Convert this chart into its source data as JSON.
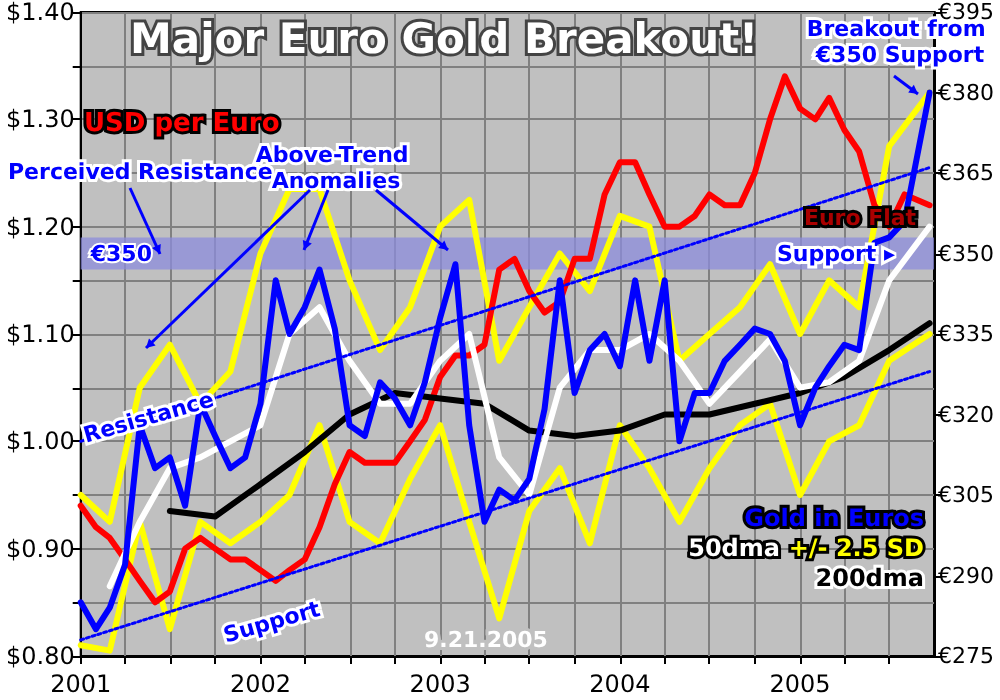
{
  "chart_data": {
    "type": "line",
    "title": "Major Euro Gold Breakout!",
    "annotations": [
      "Perceived Resistance",
      "Above-Trend Anomalies",
      "Euro Flat",
      "Support ▸",
      "Breakout from €350 Support",
      "Resistance",
      "Support",
      "9.21.2005"
    ],
    "xlim": [
      "2001-01-01",
      "2005-09-30"
    ],
    "xticks": [
      "2001",
      {
        "value": "2001-04",
        "label": null
      },
      {
        "value": "2001-07",
        "label": null
      },
      {
        "value": "2001-10",
        "label": null
      },
      "2002",
      {
        "value": "2002-04",
        "label": null
      },
      {
        "value": "2002-07",
        "label": null
      },
      {
        "value": "2002-10",
        "label": null
      },
      "2003",
      {
        "value": "2003-04",
        "label": null
      },
      {
        "value": "2003-07",
        "label": null
      },
      {
        "value": "2003-10",
        "label": null
      },
      "2004",
      {
        "value": "2004-04",
        "label": null
      },
      {
        "value": "2004-07",
        "label": null
      },
      {
        "value": "2004-10",
        "label": null
      },
      "2005",
      {
        "value": "2005-04",
        "label": null
      },
      {
        "value": "2005-07",
        "label": null
      }
    ],
    "ylim": [
      0.8,
      1.4
    ],
    "yticks": [
      {
        "value": 0.8,
        "label": "$0.80"
      },
      {
        "value": 0.85,
        "label": null
      },
      {
        "value": 0.9,
        "label": "$0.90"
      },
      {
        "value": 0.95,
        "label": null
      },
      {
        "value": 1.0,
        "label": "$1.00"
      },
      {
        "value": 1.05,
        "label": null
      },
      {
        "value": 1.1,
        "label": "$1.10"
      },
      {
        "value": 1.15,
        "label": null
      },
      {
        "value": 1.2,
        "label": "$1.20"
      },
      {
        "value": 1.25,
        "label": null
      },
      {
        "value": 1.3,
        "label": "$1.30"
      },
      {
        "value": 1.35,
        "label": null
      },
      {
        "value": 1.4,
        "label": "$1.40"
      }
    ],
    "y2lim": [
      275,
      395
    ],
    "y2ticks": [
      {
        "value": 275,
        "label": "€275"
      },
      {
        "value": 290,
        "label": "€290"
      },
      {
        "value": 305,
        "label": "€305"
      },
      {
        "value": 320,
        "label": "€320"
      },
      {
        "value": 335,
        "label": "€335"
      },
      {
        "value": 350,
        "label": "€350"
      },
      {
        "value": 365,
        "label": "€365"
      },
      {
        "value": 380,
        "label": "€380"
      },
      {
        "value": 395,
        "label": "€395"
      }
    ],
    "grid": true,
    "marker": "none",
    "bands": [
      {
        "axis": "y2",
        "from": 347,
        "to": 353,
        "label": "€350",
        "color": "#8c8cdc"
      }
    ],
    "series": [
      {
        "name": "+/- 2.5 SD",
        "color": "#ffff00",
        "axis": "y2",
        "x": [
          "2001-01",
          "2001-03",
          "2001-05",
          "2001-07",
          "2001-09",
          "2001-11",
          "2002-01",
          "2002-03",
          "2002-05",
          "2002-07",
          "2002-09",
          "2002-11",
          "2003-01",
          "2003-03",
          "2003-05",
          "2003-07",
          "2003-09",
          "2003-11",
          "2004-01",
          "2004-03",
          "2004-05",
          "2004-07",
          "2004-09",
          "2004-11",
          "2005-01",
          "2005-03",
          "2005-05",
          "2005-07",
          "2005-09-21"
        ],
        "values": [
          305,
          300,
          325,
          333,
          322,
          328,
          350,
          362,
          362,
          345,
          332,
          340,
          355,
          360,
          330,
          340,
          350,
          343,
          357,
          355,
          330,
          335,
          340,
          348,
          335,
          345,
          340,
          370,
          380
        ]
      },
      {
        "color": "#ffff00",
        "axis": "y2",
        "x": [
          "2001-01",
          "2001-03",
          "2001-05",
          "2001-07",
          "2001-09",
          "2001-11",
          "2002-01",
          "2002-03",
          "2002-05",
          "2002-07",
          "2002-09",
          "2002-11",
          "2003-01",
          "2003-03",
          "2003-05",
          "2003-07",
          "2003-09",
          "2003-11",
          "2004-01",
          "2004-03",
          "2004-05",
          "2004-07",
          "2004-09",
          "2004-11",
          "2005-01",
          "2005-03",
          "2005-05",
          "2005-07",
          "2005-09-21"
        ],
        "values": [
          277,
          276,
          300,
          280,
          300,
          296,
          300,
          305,
          318,
          300,
          296,
          308,
          318,
          300,
          282,
          302,
          310,
          296,
          318,
          310,
          300,
          310,
          318,
          322,
          305,
          315,
          318,
          330,
          335
        ]
      },
      {
        "name": "USD per Euro",
        "color": "#ff0000",
        "x": [
          "2001-01",
          "2001-02",
          "2001-03",
          "2001-04",
          "2001-05",
          "2001-06",
          "2001-07",
          "2001-08",
          "2001-09",
          "2001-10",
          "2001-11",
          "2001-12",
          "2002-01",
          "2002-02",
          "2002-03",
          "2002-04",
          "2002-05",
          "2002-06",
          "2002-07",
          "2002-08",
          "2002-09",
          "2002-10",
          "2002-11",
          "2002-12",
          "2003-01",
          "2003-02",
          "2003-03",
          "2003-04",
          "2003-05",
          "2003-06",
          "2003-07",
          "2003-08",
          "2003-09",
          "2003-10",
          "2003-11",
          "2003-12",
          "2004-01",
          "2004-02",
          "2004-03",
          "2004-04",
          "2004-05",
          "2004-06",
          "2004-07",
          "2004-08",
          "2004-09",
          "2004-10",
          "2004-11",
          "2004-12",
          "2005-01",
          "2005-02",
          "2005-03",
          "2005-04",
          "2005-05",
          "2005-06",
          "2005-07",
          "2005-08",
          "2005-09-21"
        ],
        "values": [
          0.94,
          0.92,
          0.91,
          0.89,
          0.87,
          0.85,
          0.86,
          0.9,
          0.91,
          0.9,
          0.89,
          0.89,
          0.88,
          0.87,
          0.88,
          0.89,
          0.92,
          0.96,
          0.99,
          0.98,
          0.98,
          0.98,
          1.0,
          1.02,
          1.06,
          1.08,
          1.08,
          1.09,
          1.16,
          1.17,
          1.14,
          1.12,
          1.13,
          1.17,
          1.17,
          1.23,
          1.26,
          1.26,
          1.23,
          1.2,
          1.2,
          1.21,
          1.23,
          1.22,
          1.22,
          1.25,
          1.3,
          1.34,
          1.31,
          1.3,
          1.32,
          1.29,
          1.27,
          1.22,
          1.2,
          1.23,
          1.22
        ]
      },
      {
        "name": "200dma",
        "color": "#000000",
        "axis": "y2",
        "x": [
          "2001-07",
          "2001-10",
          "2002-01",
          "2002-04",
          "2002-07",
          "2002-10",
          "2003-01",
          "2003-04",
          "2003-07",
          "2003-10",
          "2004-01",
          "2004-04",
          "2004-07",
          "2004-10",
          "2005-01",
          "2005-04",
          "2005-07",
          "2005-09-21"
        ],
        "values": [
          302,
          301,
          307,
          313,
          320,
          324,
          323,
          322,
          317,
          316,
          317,
          320,
          320,
          322,
          324,
          327,
          332,
          337
        ]
      },
      {
        "name": "50dma",
        "color": "#ffffff",
        "axis": "y2",
        "x": [
          "2001-03",
          "2001-05",
          "2001-07",
          "2001-09",
          "2001-11",
          "2002-01",
          "2002-03",
          "2002-05",
          "2002-07",
          "2002-09",
          "2002-11",
          "2003-01",
          "2003-03",
          "2003-05",
          "2003-07",
          "2003-09",
          "2003-11",
          "2004-01",
          "2004-03",
          "2004-05",
          "2004-07",
          "2004-09",
          "2004-11",
          "2005-01",
          "2005-03",
          "2005-05",
          "2005-07",
          "2005-09-21"
        ],
        "values": [
          288,
          300,
          310,
          312,
          315,
          318,
          335,
          340,
          330,
          322,
          322,
          330,
          335,
          312,
          305,
          325,
          332,
          332,
          335,
          330,
          322,
          328,
          334,
          325,
          326,
          330,
          345,
          355
        ]
      },
      {
        "name": "Gold in Euros",
        "color": "#0000ff",
        "axis": "y2",
        "x": [
          "2001-01",
          "2001-02",
          "2001-03",
          "2001-04",
          "2001-05",
          "2001-06",
          "2001-07",
          "2001-08",
          "2001-09",
          "2001-10",
          "2001-11",
          "2001-12",
          "2002-01",
          "2002-02",
          "2002-03",
          "2002-04",
          "2002-05",
          "2002-06",
          "2002-07",
          "2002-08",
          "2002-09",
          "2002-10",
          "2002-11",
          "2002-12",
          "2003-01",
          "2003-02",
          "2003-03",
          "2003-04",
          "2003-05",
          "2003-06",
          "2003-07",
          "2003-08",
          "2003-09",
          "2003-10",
          "2003-11",
          "2003-12",
          "2004-01",
          "2004-02",
          "2004-03",
          "2004-04",
          "2004-05",
          "2004-06",
          "2004-07",
          "2004-08",
          "2004-09",
          "2004-10",
          "2004-11",
          "2004-12",
          "2005-01",
          "2005-02",
          "2005-03",
          "2005-04",
          "2005-05",
          "2005-06",
          "2005-07",
          "2005-08",
          "2005-09-21"
        ],
        "values": [
          285,
          280,
          284,
          292,
          318,
          310,
          312,
          303,
          322,
          316,
          310,
          312,
          322,
          345,
          335,
          340,
          347,
          336,
          318,
          316,
          326,
          323,
          318,
          326,
          338,
          348,
          318,
          300,
          306,
          304,
          308,
          321,
          345,
          324,
          332,
          335,
          329,
          345,
          330,
          345,
          315,
          324,
          324,
          330,
          333,
          336,
          335,
          330,
          318,
          325,
          329,
          333,
          332,
          352,
          353,
          356,
          380
        ]
      },
      {
        "color": "#0000ff",
        "axis": "y2",
        "line_style": "dotted",
        "x": [
          "2001-01-01",
          "2005-09-21"
        ],
        "values": [
          315,
          366
        ]
      },
      {
        "color": "#0000ff",
        "axis": "y2",
        "line_style": "dotted",
        "x": [
          "2001-01-01",
          "2005-09-21"
        ],
        "values": [
          278,
          328
        ]
      }
    ]
  }
}
